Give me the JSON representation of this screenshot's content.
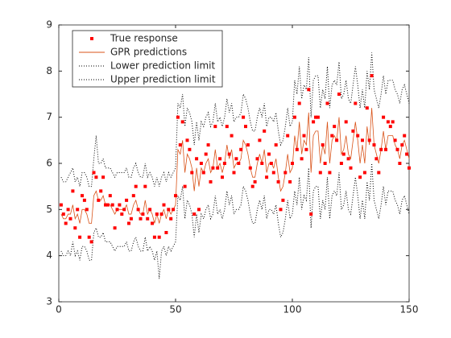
{
  "chart_data": {
    "type": "line",
    "x": [
      1,
      2,
      3,
      4,
      5,
      6,
      7,
      8,
      9,
      10,
      11,
      12,
      13,
      14,
      15,
      16,
      17,
      18,
      19,
      20,
      21,
      22,
      23,
      24,
      25,
      26,
      27,
      28,
      29,
      30,
      31,
      32,
      33,
      34,
      35,
      36,
      37,
      38,
      39,
      40,
      41,
      42,
      43,
      44,
      45,
      46,
      47,
      48,
      49,
      50,
      51,
      52,
      53,
      54,
      55,
      56,
      57,
      58,
      59,
      60,
      61,
      62,
      63,
      64,
      65,
      66,
      67,
      68,
      69,
      70,
      71,
      72,
      73,
      74,
      75,
      76,
      77,
      78,
      79,
      80,
      81,
      82,
      83,
      84,
      85,
      86,
      87,
      88,
      89,
      90,
      91,
      92,
      93,
      94,
      95,
      96,
      97,
      98,
      99,
      100,
      101,
      102,
      103,
      104,
      105,
      106,
      107,
      108,
      109,
      110,
      111,
      112,
      113,
      114,
      115,
      116,
      117,
      118,
      119,
      120,
      121,
      122,
      123,
      124,
      125,
      126,
      127,
      128,
      129,
      130,
      131,
      132,
      133,
      134,
      135,
      136,
      137,
      138,
      139,
      140,
      141,
      142,
      143,
      144,
      145,
      146,
      147,
      148,
      149,
      150
    ],
    "series": [
      {
        "name": "True response",
        "color": "#ff0000",
        "style": "marker",
        "values": [
          5.1,
          4.9,
          4.7,
          5.0,
          4.8,
          5.4,
          4.6,
          5.0,
          4.4,
          5.3,
          5.2,
          5.0,
          4.4,
          4.3,
          5.8,
          5.7,
          5.2,
          5.4,
          5.7,
          5.1,
          5.1,
          5.3,
          5.1,
          4.6,
          5.0,
          5.1,
          4.9,
          5.0,
          5.2,
          4.7,
          4.8,
          5.3,
          5.5,
          5.0,
          4.8,
          4.9,
          5.5,
          4.8,
          5.0,
          4.7,
          4.4,
          4.9,
          4.4,
          4.9,
          5.1,
          4.5,
          5.0,
          4.8,
          5.0,
          5.3,
          7.0,
          6.4,
          6.9,
          5.5,
          6.5,
          6.3,
          5.8,
          4.9,
          6.1,
          5.0,
          6.0,
          5.8,
          6.2,
          6.4,
          5.6,
          5.9,
          6.8,
          5.9,
          6.1,
          5.7,
          6.0,
          6.8,
          6.2,
          6.6,
          5.8,
          6.1,
          6.0,
          6.3,
          7.0,
          6.8,
          6.4,
          5.9,
          5.5,
          5.6,
          6.1,
          6.5,
          6.0,
          6.7,
          5.7,
          6.2,
          6.0,
          5.8,
          6.4,
          5.6,
          5.0,
          5.2,
          5.8,
          6.6,
          5.6,
          6.0,
          7.0,
          6.3,
          7.3,
          6.1,
          6.6,
          6.3,
          7.6,
          4.9,
          6.9,
          7.0,
          7.0,
          5.8,
          6.4,
          6.0,
          7.3,
          5.8,
          6.6,
          6.8,
          6.5,
          7.5,
          6.0,
          6.2,
          6.9,
          6.1,
          5.9,
          6.7,
          7.3,
          6.6,
          5.7,
          6.5,
          5.8,
          7.2,
          6.5,
          7.9,
          6.4,
          6.1,
          5.8,
          6.3,
          7.0,
          6.3,
          6.9,
          6.8,
          6.9,
          6.5,
          6.3,
          6.0,
          6.4,
          6.6,
          6.2,
          5.9
        ]
      },
      {
        "name": "GPR predictions",
        "color": "#d95319",
        "style": "solid",
        "values": [
          4.9,
          4.8,
          4.8,
          4.9,
          4.9,
          5.1,
          4.8,
          4.9,
          4.7,
          5.0,
          5.0,
          4.9,
          4.7,
          4.7,
          5.3,
          5.4,
          5.2,
          5.2,
          5.3,
          5.1,
          5.1,
          5.1,
          5.0,
          4.9,
          5.0,
          5.0,
          5.0,
          5.0,
          5.1,
          4.9,
          4.9,
          5.1,
          5.2,
          5.0,
          4.9,
          4.9,
          5.2,
          4.9,
          5.0,
          4.9,
          4.7,
          4.9,
          4.7,
          4.9,
          5.0,
          4.8,
          5.0,
          4.9,
          5.0,
          5.1,
          6.3,
          6.2,
          6.5,
          5.8,
          6.2,
          6.1,
          5.9,
          5.4,
          5.9,
          5.5,
          5.9,
          5.8,
          6.0,
          6.1,
          5.8,
          5.9,
          6.3,
          5.9,
          6.0,
          5.8,
          6.0,
          6.4,
          6.1,
          6.3,
          5.9,
          6.0,
          6.0,
          6.1,
          6.5,
          6.4,
          6.2,
          5.9,
          5.7,
          5.7,
          6.0,
          6.2,
          6.0,
          6.3,
          5.8,
          6.0,
          6.0,
          5.9,
          6.1,
          5.7,
          5.4,
          5.5,
          5.8,
          6.2,
          5.8,
          5.9,
          6.6,
          6.3,
          6.9,
          6.2,
          6.5,
          6.4,
          7.1,
          5.8,
          6.6,
          6.7,
          6.7,
          6.0,
          6.4,
          6.2,
          6.9,
          6.0,
          6.5,
          6.6,
          6.5,
          7.0,
          6.2,
          6.3,
          6.6,
          6.2,
          6.1,
          6.5,
          6.9,
          6.5,
          6.0,
          6.4,
          6.0,
          6.8,
          6.4,
          7.2,
          6.4,
          6.2,
          6.0,
          6.3,
          6.7,
          6.3,
          6.6,
          6.6,
          6.6,
          6.4,
          6.3,
          6.1,
          6.4,
          6.5,
          6.3,
          6.1
        ]
      },
      {
        "name": "Lower prediction limit",
        "color": "#000000",
        "style": "dotted",
        "values": [
          4.1,
          4.0,
          4.0,
          4.1,
          4.0,
          4.3,
          4.0,
          4.1,
          3.9,
          4.2,
          4.2,
          4.1,
          3.9,
          3.9,
          4.5,
          4.6,
          4.4,
          4.4,
          4.5,
          4.3,
          4.3,
          4.3,
          4.2,
          4.1,
          4.2,
          4.2,
          4.2,
          4.2,
          4.3,
          4.1,
          4.1,
          4.3,
          4.4,
          4.2,
          4.1,
          4.1,
          4.4,
          4.1,
          4.2,
          4.1,
          3.9,
          4.1,
          3.5,
          4.1,
          4.2,
          4.0,
          4.2,
          4.1,
          4.2,
          4.3,
          5.3,
          5.2,
          5.5,
          4.8,
          5.2,
          5.1,
          4.9,
          4.4,
          4.9,
          4.5,
          4.9,
          4.8,
          5.0,
          5.1,
          4.8,
          4.9,
          5.3,
          4.9,
          5.0,
          4.8,
          5.0,
          5.4,
          5.1,
          5.3,
          4.9,
          5.0,
          5.0,
          5.1,
          5.5,
          5.4,
          5.2,
          4.9,
          4.7,
          4.7,
          5.0,
          5.2,
          5.0,
          5.3,
          4.8,
          5.0,
          5.0,
          4.9,
          5.1,
          4.7,
          4.4,
          4.5,
          4.8,
          5.2,
          4.8,
          4.9,
          5.4,
          5.1,
          5.7,
          5.0,
          5.3,
          5.2,
          5.9,
          4.6,
          5.4,
          5.5,
          5.5,
          4.8,
          5.2,
          5.0,
          5.7,
          4.8,
          5.3,
          5.4,
          5.3,
          5.8,
          5.0,
          5.1,
          5.4,
          5.0,
          4.9,
          5.3,
          5.7,
          5.3,
          4.8,
          5.2,
          4.8,
          5.6,
          5.2,
          6.0,
          5.2,
          5.0,
          4.8,
          5.1,
          5.5,
          5.1,
          5.4,
          5.4,
          5.4,
          5.2,
          5.1,
          4.9,
          5.2,
          5.3,
          5.1,
          4.9
        ]
      },
      {
        "name": "Upper prediction limit",
        "color": "#000000",
        "style": "dotted",
        "values": [
          5.7,
          5.6,
          5.6,
          5.7,
          5.8,
          5.9,
          5.6,
          5.7,
          5.5,
          5.8,
          5.8,
          5.7,
          5.5,
          5.5,
          6.1,
          6.6,
          6.0,
          6.0,
          6.1,
          5.9,
          5.9,
          5.9,
          5.8,
          5.7,
          5.8,
          5.8,
          5.8,
          5.8,
          5.9,
          5.7,
          5.7,
          5.9,
          6.0,
          5.8,
          5.7,
          5.7,
          6.0,
          5.7,
          5.8,
          5.7,
          5.5,
          5.7,
          5.5,
          5.7,
          5.8,
          5.6,
          5.8,
          5.7,
          5.8,
          5.9,
          7.3,
          7.2,
          7.5,
          6.8,
          7.2,
          7.1,
          6.9,
          6.4,
          6.9,
          6.5,
          6.9,
          6.8,
          7.0,
          7.1,
          6.8,
          6.9,
          7.3,
          6.9,
          7.0,
          6.8,
          7.0,
          7.4,
          7.1,
          7.3,
          6.9,
          7.0,
          7.0,
          7.1,
          7.5,
          7.4,
          7.2,
          6.9,
          6.7,
          6.7,
          7.0,
          7.2,
          7.0,
          7.3,
          6.8,
          7.0,
          7.0,
          6.9,
          7.1,
          6.7,
          6.4,
          6.5,
          6.8,
          7.2,
          6.8,
          6.9,
          7.8,
          7.5,
          8.1,
          7.4,
          7.7,
          7.6,
          8.3,
          7.0,
          7.8,
          7.9,
          7.9,
          7.2,
          7.6,
          7.4,
          8.1,
          7.2,
          7.7,
          7.8,
          7.7,
          8.2,
          7.4,
          7.5,
          7.8,
          7.4,
          7.3,
          7.7,
          8.1,
          7.7,
          7.2,
          7.6,
          7.2,
          8.0,
          7.6,
          8.4,
          7.6,
          7.4,
          7.2,
          7.5,
          7.9,
          7.5,
          7.8,
          7.8,
          7.8,
          7.6,
          7.5,
          7.3,
          7.6,
          7.7,
          7.5,
          7.3
        ]
      }
    ],
    "xlim": [
      0,
      150
    ],
    "xticks": [
      0,
      50,
      100,
      150
    ],
    "ylim": [
      3,
      9
    ],
    "yticks": [
      3,
      4,
      5,
      6,
      7,
      8,
      9
    ],
    "grid": false,
    "legend": "northwest"
  }
}
